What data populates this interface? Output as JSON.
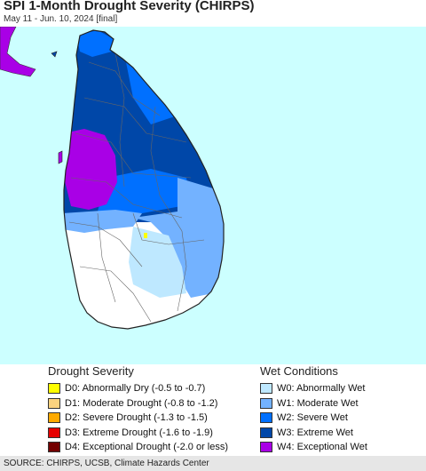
{
  "header": {
    "title": "SPI 1-Month Drought Severity (CHIRPS)",
    "subtitle": "May 11 - Jun. 10, 2024 [final]"
  },
  "legend": {
    "drought": {
      "heading": "Drought Severity",
      "items": [
        {
          "label": "D0: Abnormally Dry (-0.5 to -0.7)",
          "color": "#ffff00"
        },
        {
          "label": "D1: Moderate Drought (-0.8 to -1.2)",
          "color": "#fcd37f"
        },
        {
          "label": "D2: Severe Drought (-1.3 to -1.5)",
          "color": "#ffaa00"
        },
        {
          "label": "D3: Extreme Drought (-1.6 to -1.9)",
          "color": "#e60000"
        },
        {
          "label": "D4: Exceptional Drought (-2.0 or less)",
          "color": "#730000"
        }
      ]
    },
    "wet": {
      "heading": "Wet Conditions",
      "items": [
        {
          "label": "W0: Abnormally Wet",
          "color": "#bee8ff"
        },
        {
          "label": "W1: Moderate Wet",
          "color": "#73b2ff"
        },
        {
          "label": "W2: Severe Wet",
          "color": "#0070ff"
        },
        {
          "label": "W3: Extreme Wet",
          "color": "#0047a8"
        },
        {
          "label": "W4: Exceptional Wet",
          "color": "#a900e6"
        }
      ]
    }
  },
  "map": {
    "ocean_color": "#ccffff",
    "land_color": "#ffffff"
  },
  "footer": {
    "source": "SOURCE: CHIRPS, UCSB, Climate Hazards Center"
  }
}
